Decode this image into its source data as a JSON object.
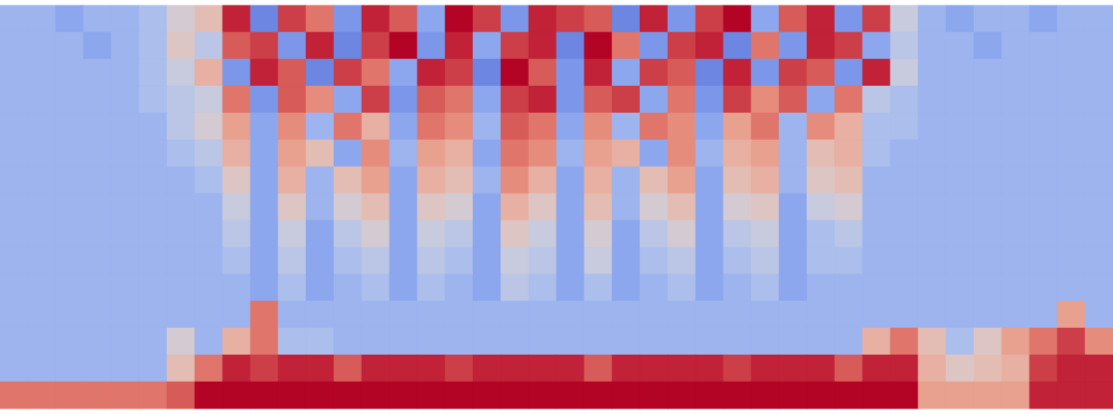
{
  "chart_data": {
    "type": "heatmap",
    "tick_labels": false,
    "zlim": [
      -10,
      10
    ],
    "z": [
      [
        -4,
        -4,
        -5,
        -4,
        -4,
        -3,
        0,
        2,
        9,
        -7,
        8,
        6,
        -6,
        9,
        7,
        -5,
        10,
        8,
        -6,
        9,
        8,
        7,
        -7,
        9,
        -6,
        8,
        10,
        -5,
        7,
        9,
        -6,
        8,
        -1,
        -4,
        -5,
        -4,
        -4,
        -5,
        -4,
        -4
      ],
      [
        -4,
        -4,
        -4,
        -5,
        -4,
        -3,
        1,
        -2,
        7,
        8,
        -6,
        9,
        -7,
        8,
        10,
        -6,
        9,
        -5,
        8,
        9,
        -7,
        10,
        6,
        -6,
        8,
        9,
        -7,
        6,
        -6,
        9,
        8,
        -5,
        -2,
        -4,
        -4,
        -5,
        -4,
        -4,
        -4,
        -4
      ],
      [
        -4,
        -4,
        -4,
        -4,
        -4,
        -3,
        -1,
        3,
        -6,
        9,
        7,
        -7,
        8,
        6,
        -5,
        9,
        8,
        -7,
        10,
        7,
        -6,
        9,
        -5,
        8,
        7,
        -7,
        9,
        -6,
        8,
        7,
        -6,
        9,
        -1,
        -4,
        -4,
        -4,
        -4,
        -4,
        -4,
        -4
      ],
      [
        -4,
        -4,
        -4,
        -4,
        -4,
        -3,
        -2,
        -1,
        6,
        -6,
        7,
        5,
        -5,
        8,
        -6,
        7,
        6,
        -5,
        8,
        9,
        -6,
        7,
        8,
        -5,
        6,
        -6,
        8,
        5,
        7,
        -5,
        6,
        -2,
        -3,
        -4,
        -4,
        -4,
        -4,
        -4,
        -4,
        -4
      ],
      [
        -4,
        -4,
        -4,
        -4,
        -4,
        -4,
        -2,
        0,
        4,
        -5,
        5,
        -4,
        6,
        3,
        -5,
        6,
        5,
        -4,
        7,
        6,
        -5,
        5,
        -4,
        6,
        5,
        -5,
        4,
        6,
        -4,
        5,
        3,
        -3,
        -3,
        -4,
        -4,
        -4,
        -4,
        -4,
        -4,
        -4
      ],
      [
        -4,
        -4,
        -4,
        -4,
        -4,
        -4,
        -3,
        -2,
        3,
        -5,
        4,
        2,
        -5,
        5,
        -4,
        4,
        3,
        -5,
        6,
        5,
        -4,
        4,
        3,
        -5,
        5,
        -4,
        3,
        4,
        -4,
        2,
        3,
        -3,
        -4,
        -4,
        -4,
        -4,
        -4,
        -4,
        -4,
        -4
      ],
      [
        -4,
        -4,
        -4,
        -4,
        -4,
        -4,
        -4,
        -3,
        1,
        -5,
        3,
        -4,
        2,
        4,
        -5,
        3,
        2,
        -4,
        5,
        3,
        -5,
        3,
        -4,
        2,
        4,
        -5,
        2,
        3,
        -4,
        1,
        2,
        -4,
        -4,
        -4,
        -4,
        -4,
        -4,
        -4,
        -4,
        -4
      ],
      [
        -4,
        -4,
        -4,
        -4,
        -4,
        -4,
        -4,
        -4,
        -1,
        -5,
        1,
        -4,
        0,
        2,
        -5,
        1,
        0,
        -5,
        3,
        1,
        -5,
        2,
        -4,
        0,
        2,
        -5,
        0,
        1,
        -5,
        -1,
        0,
        -4,
        -4,
        -4,
        -4,
        -4,
        -4,
        -4,
        -4,
        -4
      ],
      [
        -4,
        -4,
        -4,
        -4,
        -4,
        -4,
        -4,
        -4,
        -2,
        -5,
        -1,
        -5,
        -2,
        0,
        -5,
        -1,
        -2,
        -5,
        1,
        -1,
        -5,
        0,
        -5,
        -2,
        0,
        -5,
        -2,
        -1,
        -5,
        -3,
        -2,
        -4,
        -4,
        -4,
        -4,
        -4,
        -4,
        -4,
        -4,
        -4
      ],
      [
        -4,
        -4,
        -4,
        -4,
        -4,
        -4,
        -4,
        -4,
        -3,
        -5,
        -2,
        -5,
        -3,
        -2,
        -5,
        -2,
        -3,
        -5,
        -1,
        -2,
        -5,
        -1,
        -5,
        -3,
        -2,
        -5,
        -3,
        -2,
        -5,
        -3,
        -3,
        -4,
        -4,
        -4,
        -4,
        -4,
        -4,
        -4,
        -4,
        -4
      ],
      [
        -4,
        -4,
        -4,
        -4,
        -4,
        -4,
        -4,
        -4,
        -4,
        -5,
        -3,
        -5,
        -4,
        -3,
        -5,
        -3,
        -4,
        -5,
        -2,
        -3,
        -5,
        -3,
        -5,
        -4,
        -3,
        -5,
        -4,
        -3,
        -5,
        -4,
        -4,
        -4,
        -4,
        -4,
        -4,
        -4,
        -4,
        -4,
        -4,
        -4
      ],
      [
        -4,
        -4,
        -4,
        -4,
        -4,
        -4,
        -4,
        -4,
        -4,
        6,
        -4,
        -4,
        -4,
        -4,
        -4,
        -4,
        -4,
        -4,
        -4,
        -4,
        -4,
        -4,
        -4,
        -4,
        -4,
        -4,
        -4,
        -4,
        -4,
        -4,
        -4,
        -4,
        -4,
        -4,
        -4,
        -4,
        -4,
        -4,
        4,
        -4
      ],
      [
        -4,
        -4,
        -4,
        -4,
        -4,
        -4,
        0,
        -4,
        3,
        6,
        -3,
        -3,
        -4,
        -4,
        -4,
        -4,
        -4,
        -4,
        -4,
        -4,
        -4,
        -4,
        -4,
        -4,
        -4,
        -4,
        -4,
        -4,
        -4,
        -4,
        -4,
        3,
        6,
        2,
        -3,
        1,
        4,
        6,
        8,
        5
      ],
      [
        -4,
        -4,
        -4,
        -4,
        -4,
        -4,
        2,
        6,
        9,
        8,
        9,
        9,
        7,
        9,
        9,
        9,
        8,
        9,
        9,
        9,
        9,
        7,
        9,
        9,
        9,
        9,
        8,
        9,
        9,
        9,
        7,
        9,
        9,
        3,
        1,
        2,
        3,
        8,
        9,
        9
      ],
      [
        6,
        6,
        6,
        6,
        6,
        6,
        7,
        10,
        10,
        10,
        10,
        10,
        10,
        10,
        10,
        10,
        10,
        10,
        10,
        10,
        10,
        10,
        10,
        10,
        10,
        10,
        10,
        10,
        10,
        10,
        10,
        10,
        10,
        4,
        4,
        4,
        4,
        9,
        9,
        9
      ]
    ]
  }
}
